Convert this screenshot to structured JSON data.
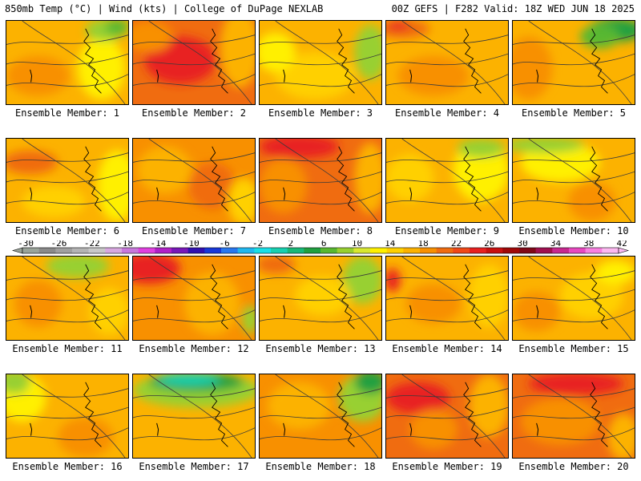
{
  "header": {
    "left": "850mb Temp (°C) | Wind (kts) | College of DuPage NEXLAB",
    "right": "00Z GEFS | F282 Valid: 18Z WED JUN 18 2025"
  },
  "panels": [
    {
      "label": "Ensemble Member: 1"
    },
    {
      "label": "Ensemble Member: 2"
    },
    {
      "label": "Ensemble Member: 3"
    },
    {
      "label": "Ensemble Member: 4"
    },
    {
      "label": "Ensemble Member: 5"
    },
    {
      "label": "Ensemble Member: 6"
    },
    {
      "label": "Ensemble Member: 7"
    },
    {
      "label": "Ensemble Member: 8"
    },
    {
      "label": "Ensemble Member: 9"
    },
    {
      "label": "Ensemble Member: 10"
    },
    {
      "label": "Ensemble Member: 11"
    },
    {
      "label": "Ensemble Member: 12"
    },
    {
      "label": "Ensemble Member: 13"
    },
    {
      "label": "Ensemble Member: 14"
    },
    {
      "label": "Ensemble Member: 15"
    },
    {
      "label": "Ensemble Member: 16"
    },
    {
      "label": "Ensemble Member: 17"
    },
    {
      "label": "Ensemble Member: 18"
    },
    {
      "label": "Ensemble Member: 19"
    },
    {
      "label": "Ensemble Member: 20"
    }
  ],
  "colorbar": {
    "tick_labels": [
      "-30",
      "-26",
      "-22",
      "-18",
      "-14",
      "-10",
      "-6",
      "-2",
      "2",
      "6",
      "10",
      "14",
      "18",
      "22",
      "26",
      "30",
      "34",
      "38",
      "42"
    ],
    "colors": [
      "#9aa49a",
      "#8a8a8a",
      "#a0a0a0",
      "#b4b4b4",
      "#c8c8c8",
      "#d8a8e0",
      "#c878dc",
      "#e040e0",
      "#b020c8",
      "#7818b8",
      "#3010b0",
      "#1838d8",
      "#2878f0",
      "#20b8f0",
      "#18e0e8",
      "#18d0b0",
      "#18b878",
      "#20a040",
      "#58b830",
      "#98d030",
      "#d8e830",
      "#fff000",
      "#ffd000",
      "#fcb200",
      "#f89000",
      "#f06c10",
      "#f04818",
      "#e82020",
      "#c81010",
      "#a00808",
      "#800818",
      "#a01050",
      "#c82890",
      "#e848c0",
      "#f880e0",
      "#fcb8f0"
    ]
  }
}
